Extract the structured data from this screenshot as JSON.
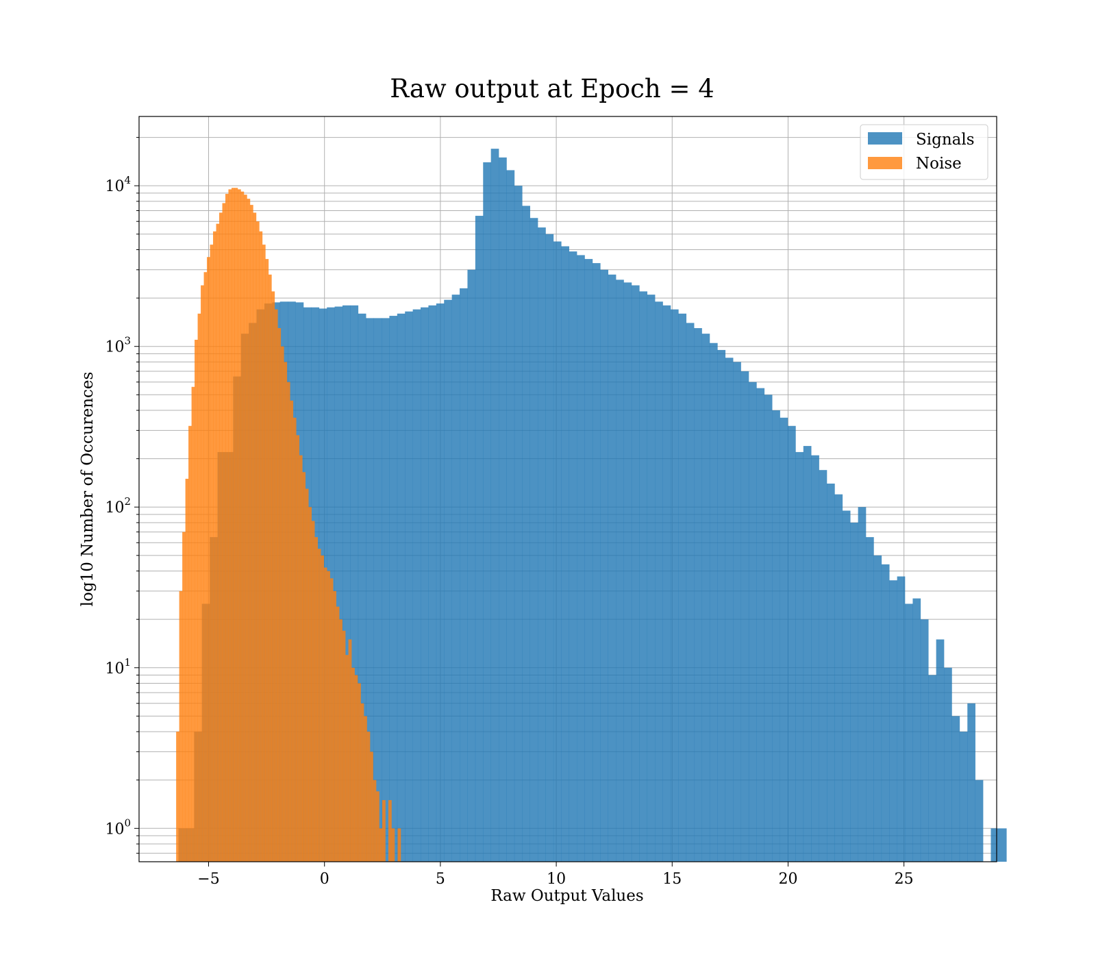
{
  "chart_data": {
    "type": "bar",
    "title": "Raw output at Epoch = 4",
    "xlabel": "Raw Output Values",
    "ylabel": "log10 Number of Occurences",
    "xlim": [
      -8,
      29
    ],
    "ylim": [
      0.62,
      27000
    ],
    "yscale": "log",
    "grid": true,
    "legend_position": "top-right",
    "x_ticks": [
      {
        "value": -5,
        "label": "−5"
      },
      {
        "value": 0,
        "label": "0"
      },
      {
        "value": 5,
        "label": "5"
      },
      {
        "value": 10,
        "label": "10"
      },
      {
        "value": 15,
        "label": "15"
      },
      {
        "value": 20,
        "label": "20"
      },
      {
        "value": 25,
        "label": "25"
      }
    ],
    "y_ticks": [
      {
        "value": 1,
        "base": "10",
        "exp": "0"
      },
      {
        "value": 10,
        "base": "10",
        "exp": "1"
      },
      {
        "value": 100,
        "base": "10",
        "exp": "2"
      },
      {
        "value": 1000,
        "base": "10",
        "exp": "3"
      },
      {
        "value": 10000,
        "base": "10",
        "exp": "4"
      }
    ],
    "series": [
      {
        "name": "Signals",
        "color": "#1f77b4",
        "opacity": 0.8,
        "x_start": -6.3,
        "bin_width": 0.337,
        "counts": [
          1,
          1,
          4,
          25,
          65,
          220,
          220,
          650,
          1200,
          1400,
          1700,
          1850,
          1880,
          1900,
          1900,
          1880,
          1750,
          1750,
          1720,
          1750,
          1770,
          1800,
          1800,
          1600,
          1500,
          1500,
          1500,
          1550,
          1600,
          1650,
          1700,
          1750,
          1800,
          1850,
          1950,
          2100,
          2300,
          3000,
          6500,
          14000,
          17000,
          15000,
          12500,
          10000,
          7500,
          6300,
          5500,
          5000,
          4500,
          4200,
          3900,
          3700,
          3500,
          3300,
          3000,
          2800,
          2600,
          2500,
          2400,
          2200,
          2100,
          1900,
          1800,
          1700,
          1600,
          1400,
          1300,
          1200,
          1050,
          950,
          850,
          800,
          700,
          600,
          550,
          500,
          400,
          360,
          320,
          220,
          240,
          210,
          170,
          140,
          120,
          95,
          80,
          100,
          65,
          50,
          44,
          35,
          37,
          25,
          27,
          20,
          9,
          15,
          10,
          5,
          4,
          6,
          2,
          0,
          1,
          1
        ]
      },
      {
        "name": "Noise",
        "color": "#ff7f0e",
        "opacity": 0.8,
        "x_start": -6.4,
        "bin_width": 0.1327,
        "counts": [
          4,
          30,
          70,
          150,
          320,
          560,
          1100,
          1600,
          2400,
          2900,
          3600,
          4300,
          5200,
          5800,
          6800,
          7800,
          8900,
          9500,
          9700,
          9700,
          9500,
          9200,
          8800,
          8300,
          7600,
          6800,
          6000,
          5200,
          4300,
          3500,
          2800,
          2200,
          1700,
          1300,
          1000,
          800,
          600,
          460,
          360,
          280,
          210,
          165,
          130,
          100,
          82,
          65,
          55,
          50,
          42,
          40,
          36,
          30,
          24,
          20,
          17,
          12,
          15,
          10,
          9,
          8,
          6,
          5,
          4,
          3,
          2,
          1.7,
          1,
          1.5,
          0,
          1.5,
          1,
          0,
          1
        ]
      }
    ]
  }
}
